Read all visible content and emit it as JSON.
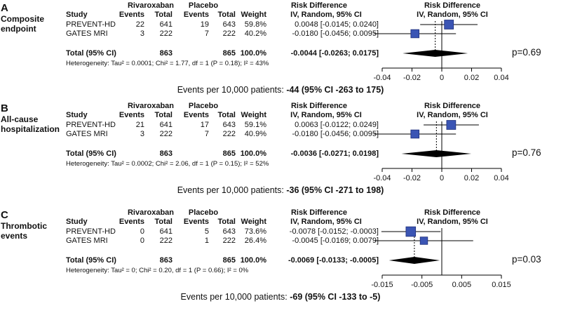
{
  "chart_data": [
    {
      "type": "forest",
      "letter": "A",
      "title": "Composite\nendpoint",
      "headers": {
        "group1": "Rivaroxaban",
        "group2": "Placebo",
        "study": "Study",
        "events": "Events",
        "total": "Total",
        "weight": "Weight",
        "rd_title": "Risk Difference",
        "rd_sub": "IV, Random, 95% CI"
      },
      "studies": [
        {
          "name": "PREVENT-HD",
          "events1": "22",
          "total1": "641",
          "events2": "19",
          "total2": "643",
          "weight": "59.8%",
          "ci_text": "0.0048 [-0.0145; 0.0240]",
          "rd": 0.0048,
          "lo": -0.0145,
          "hi": 0.024,
          "w": 59.8
        },
        {
          "name": "GATES MRI",
          "events1": "3",
          "total1": "222",
          "events2": "7",
          "total2": "222",
          "weight": "40.2%",
          "ci_text": "-0.0180 [-0.0456; 0.0095]",
          "rd": -0.018,
          "lo": -0.0456,
          "hi": 0.0095,
          "w": 40.2
        }
      ],
      "total": {
        "label": "Total (95% CI)",
        "total1": "863",
        "total2": "865",
        "weight": "100.0%",
        "ci_text": "-0.0044 [-0.0263; 0.0175]",
        "rd": -0.0044,
        "lo": -0.0263,
        "hi": 0.0175
      },
      "heterogeneity": "Heterogeneity: Tau² = 0.0001; Chi² = 1.77, df = 1 (P = 0.18); I² = 43%",
      "xlim": [
        -0.04,
        0.04
      ],
      "ticks": [
        -0.04,
        -0.02,
        0,
        0.02,
        0.04
      ],
      "tick_labels": [
        "-0.04",
        "-0.02",
        "0",
        "0.02",
        "0.04"
      ],
      "p_value": "p=0.69",
      "events_prefix": "Events per 10,000 patients: ",
      "events_value": "-44 (95% CI -263  to 175)"
    },
    {
      "type": "forest",
      "letter": "B",
      "title": "All-cause\nhospitalization",
      "headers": {
        "group1": "Rivaroxaban",
        "group2": "Placebo",
        "study": "Study",
        "events": "Events",
        "total": "Total",
        "weight": "Weight",
        "rd_title": "Risk Difference",
        "rd_sub": "IV, Random, 95% CI"
      },
      "studies": [
        {
          "name": "PREVENT-HD",
          "events1": "21",
          "total1": "641",
          "events2": "17",
          "total2": "643",
          "weight": "59.1%",
          "ci_text": "0.0063 [-0.0122; 0.0249]",
          "rd": 0.0063,
          "lo": -0.0122,
          "hi": 0.0249,
          "w": 59.1
        },
        {
          "name": "GATES MRI",
          "events1": "3",
          "total1": "222",
          "events2": "7",
          "total2": "222",
          "weight": "40.9%",
          "ci_text": "-0.0180 [-0.0456; 0.0095]",
          "rd": -0.018,
          "lo": -0.0456,
          "hi": 0.0095,
          "w": 40.9
        }
      ],
      "total": {
        "label": "Total (95% CI)",
        "total1": "863",
        "total2": "865",
        "weight": "100.0%",
        "ci_text": "-0.0036 [-0.0271; 0.0198]",
        "rd": -0.0036,
        "lo": -0.0271,
        "hi": 0.0198
      },
      "heterogeneity": "Heterogeneity: Tau² = 0.0002; Chi² = 2.06, df = 1 (P = 0.15); I² = 52%",
      "xlim": [
        -0.04,
        0.04
      ],
      "ticks": [
        -0.04,
        -0.02,
        0,
        0.02,
        0.04
      ],
      "tick_labels": [
        "-0.04",
        "-0.02",
        "0",
        "0.02",
        "0.04"
      ],
      "p_value": "p=0.76",
      "events_prefix": "Events per 10,000 patients: ",
      "events_value": "-36 (95% CI -271  to 198)"
    },
    {
      "type": "forest",
      "letter": "C",
      "title": "Thrombotic\nevents",
      "headers": {
        "group1": "Rivaroxaban",
        "group2": "Placebo",
        "study": "Study",
        "events": "Events",
        "total": "Total",
        "weight": "Weight",
        "rd_title": "Risk Difference",
        "rd_sub": "IV, Random, 95% CI"
      },
      "studies": [
        {
          "name": "PREVENT-HD",
          "events1": "0",
          "total1": "641",
          "events2": "5",
          "total2": "643",
          "weight": "73.6%",
          "ci_text": "-0.0078 [-0.0152; -0.0003]",
          "rd": -0.0078,
          "lo": -0.0152,
          "hi": -0.0003,
          "w": 73.6
        },
        {
          "name": "GATES MRI",
          "events1": "0",
          "total1": "222",
          "events2": "1",
          "total2": "222",
          "weight": "26.4%",
          "ci_text": "-0.0045 [-0.0169; 0.0079]",
          "rd": -0.0045,
          "lo": -0.0169,
          "hi": 0.0079,
          "w": 26.4
        }
      ],
      "total": {
        "label": "Total (95% CI)",
        "total1": "863",
        "total2": "865",
        "weight": "100.0%",
        "ci_text": "-0.0069 [-0.0133; -0.0005]",
        "rd": -0.0069,
        "lo": -0.0133,
        "hi": -0.0005
      },
      "heterogeneity": "Heterogeneity: Tau² = 0; Chi² = 0.20, df = 1 (P = 0.66); I² = 0%",
      "xlim": [
        -0.015,
        0.015
      ],
      "ticks": [
        -0.015,
        -0.005,
        0.005,
        0.015
      ],
      "tick_labels": [
        "-0.015",
        "-0.005",
        "0.005",
        "0.015"
      ],
      "p_value": "p=0.03",
      "events_prefix": "Events per 10,000 patients: ",
      "events_value": "-69 (95% CI -133  to -5)"
    }
  ],
  "colors": {
    "square": "#3b55b4",
    "square_edge": "#1f2f7a",
    "diamond": "#000000",
    "line": "#000000"
  }
}
